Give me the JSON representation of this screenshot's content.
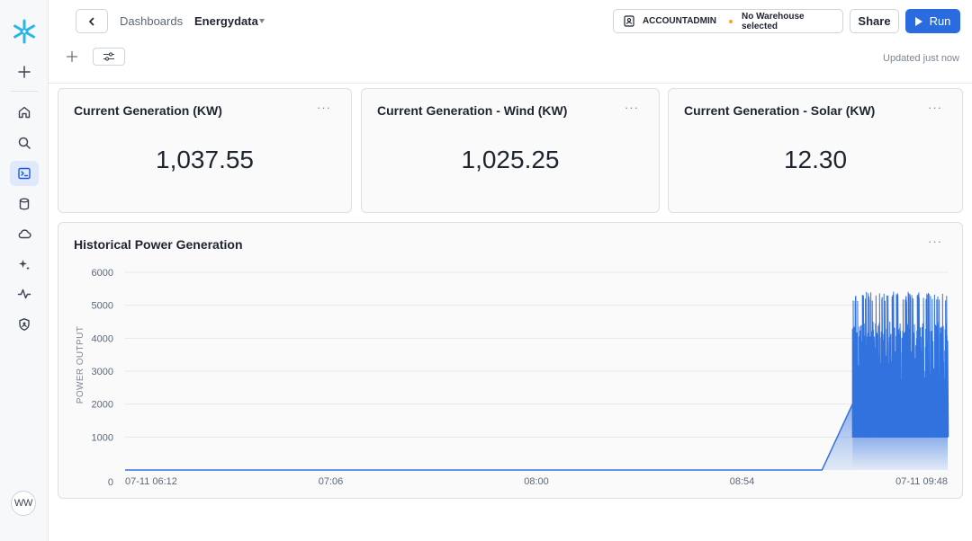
{
  "rail": {
    "avatar_initials": "WW",
    "items": [
      "create-icon",
      "home-icon",
      "search-icon",
      "worksheets-icon",
      "database-icon",
      "cloud-icon",
      "ai-sparkle-icon",
      "activity-icon",
      "admin-shield-icon"
    ]
  },
  "header": {
    "breadcrumb_parent": "Dashboards",
    "breadcrumb_current": "Energydata",
    "role": "ACCOUNTADMIN",
    "warehouse": "No Warehouse selected",
    "share_label": "Share",
    "run_label": "Run",
    "updated": "Updated just now"
  },
  "tiles": [
    {
      "title": "Current Generation (KW)",
      "value": "1,037.55"
    },
    {
      "title": "Current Generation - Wind (KW)",
      "value": "1,025.25"
    },
    {
      "title": "Current Generation - Solar (KW)",
      "value": "12.30"
    }
  ],
  "chart_tile": {
    "title": "Historical Power Generation",
    "more": "···"
  },
  "colors": {
    "accent": "#2a6ce0",
    "series": "#3272df",
    "warehouse_dot": "#f1a52b"
  },
  "chart_data": {
    "type": "area",
    "title": "Historical Power Generation",
    "ylabel": "POWER OUTPUT",
    "xlabel": "",
    "ylim": [
      0,
      6000
    ],
    "yticks": [
      0,
      1000,
      2000,
      3000,
      4000,
      5000,
      6000
    ],
    "xticks": [
      "07-11 06:12",
      "07:06",
      "08:00",
      "08:54",
      "07-11 09:48"
    ],
    "grid": true,
    "x_range": [
      "07-11 06:12",
      "07-11 09:48"
    ],
    "series": [
      {
        "values_description_points": [
          [
            "07-11 06:12",
            0
          ],
          [
            "07-11 09:15",
            0
          ],
          [
            "07-11 09:23",
            2000
          ],
          [
            "07-11 09:23",
            4200
          ],
          [
            "07-11 09:48",
            1000
          ]
        ],
        "active_band": {
          "x_start": "07-11 09:23",
          "x_end": "07-11 09:48",
          "min": 1000,
          "max": 5400
        }
      }
    ]
  }
}
